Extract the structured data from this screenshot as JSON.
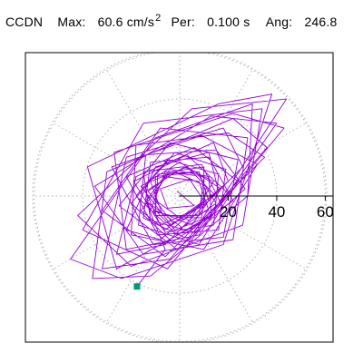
{
  "header": {
    "station": "CCDN",
    "max_label": "Max:",
    "max_value": "60.6 cm/s",
    "max_unit_exp": "2",
    "per_label": "Per:",
    "per_value": "0.100 s",
    "ang_label": "Ang:",
    "ang_value": "246.8"
  },
  "colors": {
    "trace": "#9400d3",
    "end_marker": "#009a7a",
    "frame": "#000000",
    "grid": "#b0b0b0",
    "axis": "#000000"
  },
  "chart_data": {
    "type": "scatter",
    "title": "",
    "grid": true,
    "polar_grid": true,
    "radial_ticks": [
      "20",
      "40",
      "60"
    ],
    "radial_tick_values": [
      20,
      40,
      60
    ],
    "rmax": 60.6,
    "angle_spokes_deg": [
      0,
      30,
      60,
      90,
      120,
      150,
      180,
      210,
      240,
      270,
      300,
      330
    ],
    "end_point": {
      "x": -17.6,
      "y": -37.3
    },
    "series": [
      {
        "style": "line",
        "points": [
          [
            -1,
            2
          ],
          [
            6,
            -4
          ],
          [
            -5,
            -5
          ],
          [
            -8,
            3
          ],
          [
            4,
            7
          ],
          [
            10,
            -2
          ],
          [
            0,
            -9
          ],
          [
            -11,
            -1
          ],
          [
            -6,
            8
          ],
          [
            8,
            6
          ],
          [
            12,
            -6
          ],
          [
            -3,
            -11
          ],
          [
            -13,
            2
          ],
          [
            -2,
            10
          ],
          [
            11,
            4
          ],
          [
            9,
            -9
          ],
          [
            -7,
            -8
          ],
          [
            -12,
            6
          ],
          [
            3,
            12
          ],
          [
            14,
            1
          ],
          [
            5,
            -12
          ],
          [
            -10,
            -6
          ],
          [
            -9,
            9
          ],
          [
            7,
            10
          ],
          [
            15,
            -3
          ],
          [
            1,
            -13
          ],
          [
            -14,
            -2
          ],
          [
            -4,
            11
          ],
          [
            12,
            8
          ],
          [
            13,
            -8
          ],
          [
            -2,
            -14
          ],
          [
            -16,
            4
          ],
          [
            0,
            14
          ],
          [
            17,
            3
          ],
          [
            6,
            -15
          ],
          [
            -12,
            -10
          ],
          [
            -15,
            10
          ],
          [
            9,
            13
          ],
          [
            18,
            -5
          ],
          [
            -1,
            -16
          ],
          [
            -18,
            0
          ],
          [
            -5,
            15
          ],
          [
            16,
            9
          ],
          [
            14,
            -12
          ],
          [
            -6,
            -15
          ],
          [
            -19,
            6
          ],
          [
            3,
            17
          ],
          [
            20,
            1
          ],
          [
            4,
            -18
          ],
          [
            -15,
            -9
          ],
          [
            -12,
            14
          ],
          [
            12,
            16
          ],
          [
            22,
            -2
          ],
          [
            -3,
            -19
          ],
          [
            -20,
            -3
          ],
          [
            -2,
            18
          ],
          [
            19,
            11
          ],
          [
            16,
            -14
          ],
          [
            -9,
            -16
          ],
          [
            -22,
            8
          ],
          [
            6,
            20
          ],
          [
            24,
            6
          ],
          [
            8,
            -20
          ],
          [
            -17,
            -12
          ],
          [
            -14,
            17
          ],
          [
            15,
            19
          ],
          [
            27,
            3
          ],
          [
            -1,
            -22
          ],
          [
            -25,
            -4
          ],
          [
            -4,
            22
          ],
          [
            24,
            15
          ],
          [
            18,
            -17
          ],
          [
            -11,
            -20
          ],
          [
            -28,
            12
          ],
          [
            9,
            25
          ],
          [
            32,
            13
          ],
          [
            10,
            -22
          ],
          [
            -20,
            -16
          ],
          [
            -18,
            21
          ],
          [
            20,
            26
          ],
          [
            35,
            16
          ],
          [
            -6,
            -25
          ],
          [
            -32,
            -6
          ],
          [
            -8,
            28
          ],
          [
            28,
            24
          ],
          [
            22,
            -18
          ],
          [
            -15,
            -24
          ],
          [
            -35,
            4
          ],
          [
            13,
            33
          ],
          [
            40,
            30
          ],
          [
            8,
            -16
          ],
          [
            -22,
            -22
          ],
          [
            -27,
            18
          ],
          [
            22,
            34
          ],
          [
            43,
            28
          ],
          [
            -5,
            -30
          ],
          [
            -40,
            -14
          ],
          [
            -15,
            30
          ],
          [
            34,
            36
          ],
          [
            26,
            -12
          ],
          [
            -20,
            -29
          ],
          [
            -42,
            -8
          ],
          [
            5,
            36
          ],
          [
            44,
            40
          ],
          [
            12,
            -9
          ],
          [
            -26,
            -30
          ],
          [
            -38,
            12
          ],
          [
            16,
            38
          ],
          [
            38,
            42
          ],
          [
            18,
            -20
          ],
          [
            -24,
            -34
          ],
          [
            -45,
            -26
          ],
          [
            -10,
            24
          ],
          [
            30,
            38
          ],
          [
            28,
            0
          ],
          [
            -12,
            -33
          ],
          [
            -36,
            -34
          ],
          [
            -30,
            10
          ],
          [
            22,
            32
          ],
          [
            36,
            20
          ],
          [
            -4,
            -26
          ],
          [
            -32,
            -30
          ],
          [
            -22,
            16
          ],
          [
            18,
            28
          ],
          [
            26,
            12
          ],
          [
            -6,
            -20
          ],
          [
            -26,
            -24
          ],
          [
            -18,
            8
          ],
          [
            14,
            22
          ],
          [
            20,
            6
          ],
          [
            -8,
            -18
          ],
          [
            -22,
            -14
          ],
          [
            -10,
            12
          ],
          [
            12,
            18
          ],
          [
            16,
            2
          ],
          [
            -6,
            -14
          ],
          [
            -16,
            -6
          ],
          [
            -4,
            10
          ],
          [
            10,
            12
          ],
          [
            10,
            -4
          ],
          [
            -8,
            -12
          ],
          [
            -14,
            2
          ],
          [
            2,
            12
          ],
          [
            14,
            6
          ],
          [
            4,
            -10
          ],
          [
            -12,
            -6
          ],
          [
            -6,
            10
          ],
          [
            10,
            8
          ],
          [
            8,
            -8
          ],
          [
            -10,
            -8
          ],
          [
            -10,
            8
          ],
          [
            8,
            10
          ],
          [
            12,
            -2
          ],
          [
            -4,
            -12
          ],
          [
            -14,
            -2
          ],
          [
            -6,
            -22
          ],
          [
            -12,
            -30
          ],
          [
            -17.6,
            -37.3
          ]
        ]
      }
    ]
  }
}
